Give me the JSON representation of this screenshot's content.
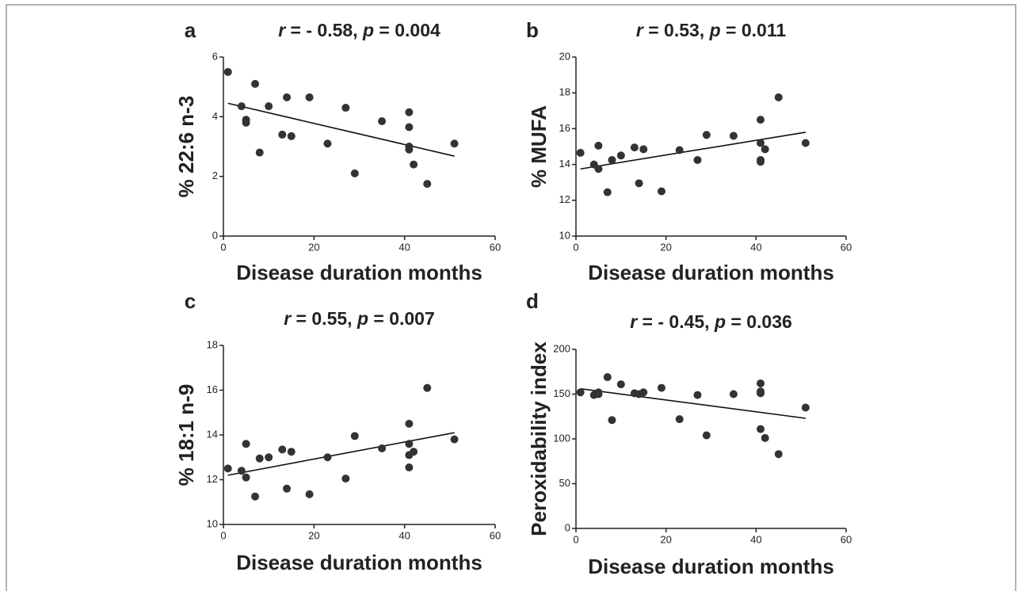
{
  "chart_data": [
    {
      "type": "scatter",
      "label": "a",
      "title": "r = - 0.58, p = 0.004",
      "xlabel": "Disease duration months",
      "ylabel": "% 22:6 n-3",
      "x": [
        1,
        4,
        5,
        5,
        7,
        8,
        10,
        13,
        14,
        15,
        19,
        23,
        27,
        29,
        35,
        41,
        41,
        41,
        41,
        42,
        45,
        51
      ],
      "y": [
        5.5,
        4.35,
        3.9,
        3.8,
        5.1,
        2.8,
        4.35,
        3.4,
        4.65,
        3.35,
        4.65,
        3.1,
        4.3,
        2.1,
        3.85,
        4.15,
        3.65,
        3.0,
        2.9,
        2.4,
        1.75,
        3.1
      ],
      "xlim": [
        0,
        60
      ],
      "xticks": [
        0,
        20,
        40,
        60
      ],
      "ylim": [
        0,
        6
      ],
      "yticks": [
        0,
        2,
        4,
        6
      ],
      "color": "#333333",
      "trendline": {
        "x": [
          1,
          51
        ],
        "y": [
          4.45,
          2.68
        ]
      }
    },
    {
      "type": "scatter",
      "label": "b",
      "title": "r = 0.53, p = 0.011",
      "xlabel": "Disease duration months",
      "ylabel": "% MUFA",
      "x": [
        1,
        4,
        5,
        5,
        7,
        8,
        10,
        13,
        14,
        15,
        19,
        23,
        27,
        29,
        35,
        41,
        41,
        41,
        41,
        42,
        45,
        51
      ],
      "y": [
        14.65,
        14.0,
        15.05,
        13.75,
        12.45,
        14.25,
        14.5,
        14.95,
        12.95,
        14.85,
        12.5,
        14.8,
        14.25,
        15.65,
        15.6,
        16.5,
        15.2,
        14.25,
        14.15,
        14.85,
        17.75,
        15.2
      ],
      "xlim": [
        0,
        60
      ],
      "xticks": [
        0,
        20,
        40,
        60
      ],
      "ylim": [
        10,
        20
      ],
      "yticks": [
        10,
        12,
        14,
        16,
        18,
        20
      ],
      "color": "#333333",
      "trendline": {
        "x": [
          1,
          51
        ],
        "y": [
          13.75,
          15.8
        ]
      }
    },
    {
      "type": "scatter",
      "label": "c",
      "title": "r = 0.55, p = 0.007",
      "xlabel": "Disease duration months",
      "ylabel": "% 18:1 n-9",
      "x": [
        1,
        4,
        5,
        5,
        7,
        8,
        10,
        13,
        14,
        15,
        19,
        23,
        27,
        29,
        35,
        41,
        41,
        41,
        41,
        42,
        45,
        51
      ],
      "y": [
        12.5,
        12.4,
        13.6,
        12.1,
        11.25,
        12.95,
        13.0,
        13.35,
        11.6,
        13.25,
        11.35,
        13.0,
        12.05,
        13.95,
        13.4,
        14.5,
        13.6,
        13.1,
        12.55,
        13.25,
        16.1,
        13.8
      ],
      "xlim": [
        0,
        60
      ],
      "xticks": [
        0,
        20,
        40,
        60
      ],
      "ylim": [
        10,
        18
      ],
      "yticks": [
        10,
        12,
        14,
        16,
        18
      ],
      "color": "#333333",
      "trendline": {
        "x": [
          1,
          51
        ],
        "y": [
          12.2,
          14.1
        ]
      }
    },
    {
      "type": "scatter",
      "label": "d",
      "title": "r = - 0.45, p = 0.036",
      "xlabel": "Disease duration months",
      "ylabel": "Peroxidability index",
      "x": [
        1,
        4,
        5,
        5,
        7,
        8,
        10,
        13,
        14,
        15,
        19,
        23,
        27,
        29,
        35,
        41,
        41,
        41,
        41,
        42,
        45,
        51
      ],
      "y": [
        152,
        149,
        150,
        152,
        169,
        121,
        161,
        151,
        150,
        152,
        157,
        122,
        149,
        104,
        150,
        162,
        153,
        151,
        111,
        101,
        83,
        135
      ],
      "xlim": [
        0,
        60
      ],
      "xticks": [
        0,
        20,
        40,
        60
      ],
      "ylim": [
        0,
        200
      ],
      "yticks": [
        0,
        50,
        100,
        150,
        200
      ],
      "color": "#333333",
      "trendline": {
        "x": [
          1,
          51
        ],
        "y": [
          156,
          123
        ]
      }
    }
  ]
}
